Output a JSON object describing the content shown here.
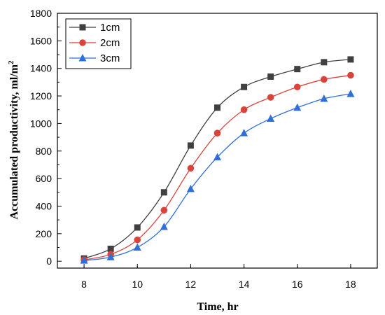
{
  "chart_data": {
    "type": "line",
    "title": "",
    "xlabel": "Time, hr",
    "ylabel": "Accumulated productivity, ml/m",
    "ylabel_superscript": "2",
    "x": [
      8,
      9,
      10,
      11,
      12,
      13,
      14,
      15,
      16,
      17,
      18
    ],
    "xlim": [
      7,
      19
    ],
    "ylim": [
      -50,
      1800
    ],
    "xticks": [
      8,
      10,
      12,
      14,
      16,
      18
    ],
    "yticks": [
      0,
      200,
      400,
      600,
      800,
      1000,
      1200,
      1400,
      1600,
      1800
    ],
    "legend_position": "top-left",
    "grid": false,
    "series": [
      {
        "name": "1cm",
        "marker": "square",
        "color": "#404040",
        "values": [
          20,
          90,
          245,
          500,
          840,
          1115,
          1265,
          1340,
          1395,
          1445,
          1465
        ]
      },
      {
        "name": "2cm",
        "marker": "circle",
        "color": "#d9443a",
        "values": [
          10,
          50,
          155,
          370,
          675,
          930,
          1100,
          1190,
          1265,
          1320,
          1350
        ]
      },
      {
        "name": "3cm",
        "marker": "triangle",
        "color": "#2f6fd8",
        "values": [
          5,
          30,
          100,
          250,
          525,
          755,
          930,
          1035,
          1115,
          1180,
          1215
        ]
      }
    ]
  }
}
